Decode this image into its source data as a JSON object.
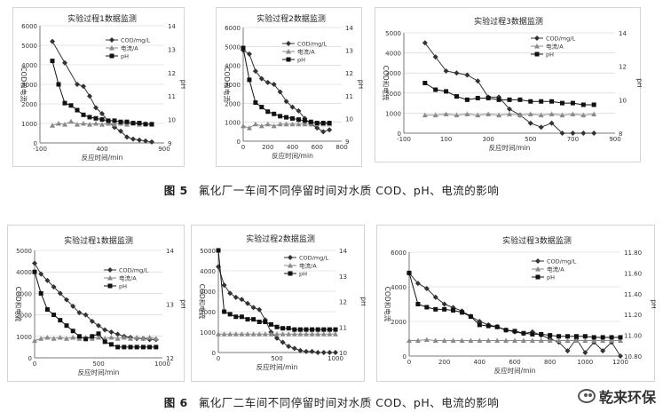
{
  "figures": [
    {
      "caption_num": "图 5",
      "caption_text": "氟化厂一车间不同停留时间对水质 COD、pH、电流的影响"
    },
    {
      "caption_num": "图 6",
      "caption_text": "氟化厂二车间不同停留时间对水质 COD、pH、电流的影响"
    }
  ],
  "watermark": "乾来环保",
  "colors": {
    "cod": "#333333",
    "current": "#8a8a8a",
    "ph": "#111111",
    "grid": "#cfcfcf",
    "axis": "#555555"
  },
  "chart_data": [
    {
      "type": "line",
      "title": "实验过程1数据监测",
      "xlabel": "反应时间/min",
      "ylabel": "COD和电流",
      "y2label": "pH",
      "xlim": [
        -100,
        900
      ],
      "xticks": [
        -100,
        400,
        900
      ],
      "ylim": [
        0,
        6000
      ],
      "yticks": [
        0,
        1000,
        2000,
        3000,
        4000,
        5000,
        6000
      ],
      "y2lim": [
        9,
        14
      ],
      "y2ticks": [
        9,
        10,
        11,
        12,
        13,
        14
      ],
      "grid": true,
      "legend": "top-right",
      "series": [
        {
          "name": "COD/mg/L",
          "axis": "left",
          "marker": "diamond",
          "x": [
            0,
            100,
            200,
            250,
            300,
            350,
            400,
            450,
            500,
            550,
            600,
            650,
            700,
            750,
            800
          ],
          "y": [
            5200,
            4100,
            3000,
            2900,
            2400,
            1800,
            1500,
            1100,
            800,
            600,
            300,
            200,
            150,
            100,
            50
          ]
        },
        {
          "name": "电流/A",
          "axis": "left",
          "marker": "triangle",
          "x": [
            0,
            50,
            100,
            150,
            200,
            250,
            300,
            350,
            400,
            450,
            500,
            550,
            600,
            650,
            700,
            750,
            800
          ],
          "y": [
            900,
            1000,
            950,
            1100,
            950,
            1000,
            950,
            1000,
            950,
            1000,
            950,
            1000,
            950,
            1000,
            950,
            1000,
            950
          ]
        },
        {
          "name": "pH",
          "axis": "right",
          "marker": "square",
          "x": [
            0,
            50,
            100,
            150,
            200,
            250,
            300,
            350,
            400,
            450,
            500,
            550,
            600,
            650,
            700,
            750,
            800
          ],
          "y": [
            12.5,
            11.5,
            10.7,
            10.6,
            10.4,
            10.2,
            10.1,
            10.05,
            10.0,
            9.95,
            9.95,
            9.9,
            9.9,
            9.85,
            9.85,
            9.8,
            9.8
          ]
        }
      ]
    },
    {
      "type": "line",
      "title": "实验过程2数据监测",
      "xlabel": "反应时间/min",
      "ylabel": "COD和电流",
      "y2label": "pH",
      "xlim": [
        0,
        800
      ],
      "xticks": [
        0,
        200,
        400,
        600,
        800
      ],
      "ylim": [
        0,
        6000
      ],
      "yticks": [
        0,
        1000,
        2000,
        3000,
        4000,
        5000,
        6000
      ],
      "y2lim": [
        9,
        14
      ],
      "y2ticks": [
        9,
        10,
        11,
        12,
        13,
        14
      ],
      "grid": true,
      "legend": "top-right",
      "series": [
        {
          "name": "COD/mg/L",
          "axis": "left",
          "marker": "diamond",
          "x": [
            0,
            50,
            100,
            150,
            200,
            250,
            300,
            350,
            400,
            450,
            500,
            550,
            600,
            650,
            700
          ],
          "y": [
            4800,
            4600,
            3700,
            3300,
            3100,
            3000,
            2600,
            2100,
            1800,
            1600,
            1200,
            900,
            700,
            500,
            600
          ]
        },
        {
          "name": "电流/A",
          "axis": "left",
          "marker": "triangle",
          "x": [
            0,
            50,
            100,
            150,
            200,
            250,
            300,
            350,
            400,
            450,
            500,
            550,
            600,
            650,
            700
          ],
          "y": [
            800,
            700,
            900,
            800,
            900,
            800,
            900,
            900,
            900,
            900,
            900,
            900,
            900,
            900,
            900
          ]
        },
        {
          "name": "pH",
          "axis": "right",
          "marker": "square",
          "x": [
            0,
            50,
            100,
            150,
            200,
            250,
            300,
            350,
            400,
            450,
            500,
            550,
            600,
            650,
            700
          ],
          "y": [
            13.1,
            11.7,
            10.7,
            10.5,
            10.3,
            10.2,
            10.1,
            10.05,
            10.0,
            9.95,
            9.9,
            9.85,
            9.8,
            9.8,
            9.8
          ]
        }
      ]
    },
    {
      "type": "line",
      "title": "实验过程3数据监测",
      "xlabel": "反应时间/min",
      "ylabel": "COD和电流",
      "y2label": "pH",
      "xlim": [
        -100,
        900
      ],
      "xticks": [
        -100,
        100,
        300,
        500,
        700,
        900
      ],
      "ylim": [
        0,
        5000
      ],
      "yticks": [
        0,
        1000,
        2000,
        3000,
        4000,
        5000
      ],
      "y2lim": [
        8,
        14
      ],
      "y2ticks": [
        8,
        10,
        12,
        14
      ],
      "grid": true,
      "legend": "top-right",
      "series": [
        {
          "name": "COD/mg/L",
          "axis": "left",
          "marker": "diamond",
          "x": [
            0,
            50,
            100,
            150,
            200,
            250,
            300,
            350,
            400,
            450,
            500,
            550,
            600,
            650,
            700,
            750,
            800
          ],
          "y": [
            4500,
            3800,
            3100,
            3000,
            2900,
            2600,
            1800,
            1800,
            1200,
            900,
            500,
            300,
            500,
            0,
            0,
            0,
            0
          ]
        },
        {
          "name": "电流/A",
          "axis": "left",
          "marker": "triangle",
          "x": [
            0,
            50,
            100,
            150,
            200,
            250,
            300,
            350,
            400,
            450,
            500,
            550,
            600,
            650,
            700,
            750,
            800
          ],
          "y": [
            900,
            900,
            950,
            900,
            950,
            900,
            950,
            900,
            950,
            900,
            950,
            900,
            950,
            900,
            950,
            900,
            950
          ]
        },
        {
          "name": "pH",
          "axis": "right",
          "marker": "square",
          "x": [
            0,
            50,
            100,
            150,
            200,
            250,
            300,
            350,
            400,
            450,
            500,
            550,
            600,
            650,
            700,
            750,
            800
          ],
          "y": [
            11.0,
            10.6,
            10.5,
            10.2,
            10.0,
            10.1,
            10.1,
            10.0,
            10.0,
            10.0,
            9.9,
            9.9,
            9.9,
            9.8,
            9.8,
            9.7,
            9.7
          ]
        }
      ]
    },
    {
      "type": "line",
      "title": "实验过程1数据监测",
      "xlabel": "反应时间/min",
      "ylabel": "COD和电流",
      "y2label": "pH",
      "xlim": [
        0,
        1000
      ],
      "xticks": [
        0,
        500,
        1000
      ],
      "ylim": [
        0,
        5000
      ],
      "yticks": [
        0,
        1000,
        2000,
        3000,
        4000,
        5000
      ],
      "y2lim": [
        12,
        14
      ],
      "y2ticks": [
        12,
        12.5,
        13,
        13.5,
        14
      ],
      "y2ticklabels": [
        "12",
        "",
        "13",
        "",
        "14"
      ],
      "grid": true,
      "legend": "top-right",
      "series": [
        {
          "name": "COD/mg/L",
          "axis": "left",
          "marker": "diamond",
          "x": [
            0,
            50,
            100,
            150,
            200,
            250,
            300,
            350,
            400,
            450,
            500,
            550,
            600,
            650,
            700,
            750,
            800,
            850,
            900,
            950
          ],
          "y": [
            4400,
            3900,
            3600,
            3300,
            3000,
            2700,
            2400,
            2100,
            2000,
            1700,
            1500,
            1300,
            1200,
            1100,
            1000,
            950,
            900,
            900,
            850,
            850
          ]
        },
        {
          "name": "电流/A",
          "axis": "left",
          "marker": "triangle",
          "x": [
            0,
            50,
            100,
            150,
            200,
            250,
            300,
            350,
            400,
            450,
            500,
            550,
            600,
            650,
            700,
            750,
            800,
            850,
            900,
            950
          ],
          "y": [
            800,
            900,
            950,
            900,
            950,
            900,
            950,
            900,
            950,
            900,
            950,
            900,
            950,
            900,
            950,
            900,
            950,
            900,
            950,
            900
          ]
        },
        {
          "name": "pH",
          "axis": "right",
          "marker": "square",
          "x": [
            0,
            50,
            100,
            150,
            200,
            250,
            300,
            350,
            400,
            450,
            500,
            550,
            600,
            650,
            700,
            750,
            800,
            850,
            900,
            950
          ],
          "y": [
            13.6,
            13.2,
            12.9,
            12.8,
            12.7,
            12.6,
            12.5,
            12.4,
            12.35,
            12.4,
            12.45,
            12.3,
            12.25,
            12.2,
            12.2,
            12.2,
            12.2,
            12.2,
            12.2,
            12.2
          ]
        }
      ]
    },
    {
      "type": "line",
      "title": "实验过程2数据监测",
      "xlabel": "反应时间/min",
      "ylabel": "COD和电流",
      "y2label": "pH",
      "xlim": [
        0,
        1000
      ],
      "xticks": [
        0,
        500,
        1000
      ],
      "ylim": [
        0,
        5000
      ],
      "yticks": [
        0,
        1000,
        2000,
        3000,
        4000,
        5000
      ],
      "y2lim": [
        10,
        14
      ],
      "y2ticks": [
        10,
        11,
        12,
        13,
        14
      ],
      "grid": true,
      "legend": "top-right",
      "series": [
        {
          "name": "COD/mg/L",
          "axis": "left",
          "marker": "diamond",
          "x": [
            0,
            50,
            100,
            150,
            200,
            250,
            300,
            350,
            400,
            450,
            500,
            550,
            600,
            650,
            700,
            750,
            800,
            850,
            900,
            950,
            1000
          ],
          "y": [
            4200,
            3300,
            2900,
            2700,
            2600,
            2400,
            2200,
            2100,
            1600,
            1000,
            700,
            500,
            300,
            200,
            100,
            50,
            50,
            0,
            0,
            0,
            0
          ]
        },
        {
          "name": "电流/A",
          "axis": "left",
          "marker": "triangle",
          "x": [
            0,
            50,
            100,
            150,
            200,
            250,
            300,
            350,
            400,
            450,
            500,
            550,
            600,
            650,
            700,
            750,
            800,
            850,
            900,
            950,
            1000
          ],
          "y": [
            900,
            900,
            900,
            900,
            900,
            900,
            900,
            900,
            900,
            900,
            900,
            900,
            900,
            900,
            900,
            900,
            900,
            900,
            900,
            900,
            900
          ]
        },
        {
          "name": "pH",
          "axis": "right",
          "marker": "square",
          "x": [
            0,
            50,
            100,
            150,
            200,
            250,
            300,
            350,
            400,
            450,
            500,
            550,
            600,
            650,
            700,
            750,
            800,
            850,
            900,
            950,
            1000
          ],
          "y": [
            14.0,
            11.6,
            11.5,
            11.4,
            11.4,
            11.3,
            11.3,
            11.2,
            11.2,
            11.1,
            11.0,
            10.95,
            10.95,
            10.9,
            10.9,
            10.9,
            10.9,
            10.9,
            10.9,
            10.9,
            10.9
          ]
        }
      ]
    },
    {
      "type": "line",
      "title": "实验过程3数据监测",
      "xlabel": "反应时间/min",
      "ylabel": "COD和电流",
      "y2label": "pH",
      "xlim": [
        0,
        1200
      ],
      "xticks": [
        0,
        200,
        400,
        600,
        800,
        1000,
        1200
      ],
      "ylim": [
        0,
        6000
      ],
      "yticks": [
        0,
        2000,
        4000,
        6000
      ],
      "y2lim": [
        10.8,
        11.8
      ],
      "y2ticks": [
        10.8,
        11.0,
        11.2,
        11.4,
        11.6,
        11.8
      ],
      "y2ticklabels": [
        "10.80",
        "11.00",
        "11.20",
        "11.40",
        "11.60",
        "11.80"
      ],
      "grid": true,
      "legend": "top-right",
      "series": [
        {
          "name": "COD/mg/L",
          "axis": "left",
          "marker": "diamond",
          "x": [
            0,
            50,
            100,
            150,
            200,
            250,
            300,
            350,
            400,
            450,
            500,
            550,
            600,
            650,
            700,
            750,
            800,
            850,
            900,
            950,
            1000,
            1050,
            1100,
            1150,
            1200
          ],
          "y": [
            4800,
            4200,
            3900,
            3400,
            3000,
            2800,
            2600,
            2300,
            2000,
            1800,
            1700,
            1500,
            1400,
            1300,
            1400,
            1200,
            1000,
            800,
            300,
            1000,
            200,
            800,
            300,
            800,
            0
          ]
        },
        {
          "name": "电流/A",
          "axis": "left",
          "marker": "triangle",
          "x": [
            0,
            50,
            100,
            150,
            200,
            250,
            300,
            350,
            400,
            450,
            500,
            550,
            600,
            650,
            700,
            750,
            800,
            850,
            900,
            950,
            1000,
            1050,
            1100,
            1150,
            1200
          ],
          "y": [
            900,
            900,
            950,
            900,
            900,
            900,
            900,
            900,
            900,
            900,
            900,
            900,
            900,
            900,
            900,
            900,
            900,
            900,
            900,
            900,
            900,
            900,
            900,
            900,
            900
          ]
        },
        {
          "name": "pH",
          "axis": "right",
          "marker": "square",
          "x": [
            0,
            50,
            100,
            150,
            200,
            250,
            300,
            350,
            400,
            450,
            500,
            550,
            600,
            650,
            700,
            750,
            800,
            850,
            900,
            950,
            1000,
            1050,
            1100,
            1150,
            1200
          ],
          "y": [
            11.6,
            11.3,
            11.27,
            11.25,
            11.25,
            11.24,
            11.22,
            11.18,
            11.1,
            11.09,
            11.08,
            11.05,
            11.04,
            11.02,
            11.01,
            11.01,
            11.0,
            10.99,
            10.99,
            10.99,
            10.99,
            10.98,
            10.98,
            10.98,
            10.98
          ]
        }
      ]
    }
  ]
}
